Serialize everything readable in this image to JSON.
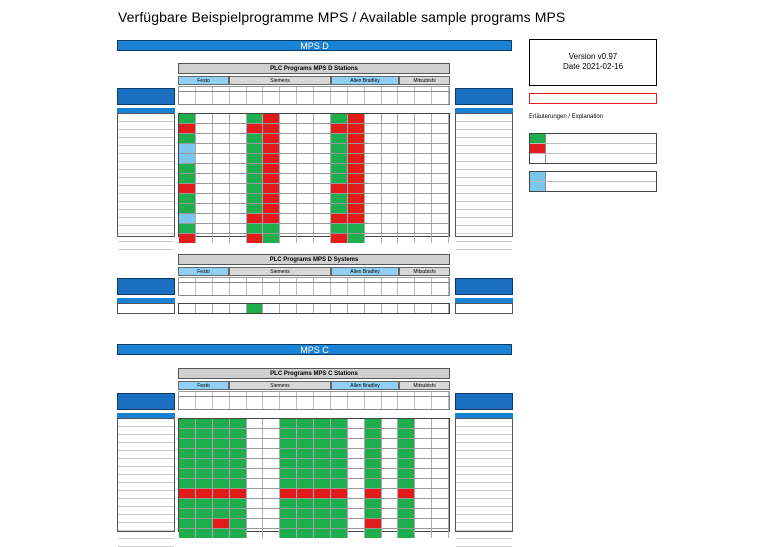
{
  "title": "Verfügbare Beispielprogramme MPS / Available sample programs MPS",
  "version_line1": "Version v0.97",
  "version_line2": "Date 2021-02-16",
  "explanation_label": "Erläuterungen / Explanation",
  "sections": {
    "mps_d": "MPS D",
    "mps_c": "MPS C"
  },
  "tables": {
    "d_stations": "PLC Programs MPS D Stations",
    "d_systems": "PLC Programs MPS D Systems",
    "c_stations": "PLC Programs MPS C Stations"
  },
  "vendors": {
    "festo": "Festo",
    "siemens": "Siemens",
    "allen_bradley": "Allen Bradley",
    "mitsubishi": "Mitsubishi"
  },
  "colors": {
    "blue_bar": "#1a82d4",
    "green": "#1fae4d",
    "red": "#e21b1b",
    "light_blue": "#7cc6ee"
  },
  "grid_d_stations": [
    [
      "g",
      "",
      "",
      "",
      "g",
      "r",
      "",
      "",
      "",
      "g",
      "r",
      "",
      "",
      "",
      "",
      ""
    ],
    [
      "r",
      "",
      "",
      "",
      "r",
      "r",
      "",
      "",
      "",
      "r",
      "r",
      "",
      "",
      "",
      "",
      ""
    ],
    [
      "g",
      "",
      "",
      "",
      "g",
      "r",
      "",
      "",
      "",
      "g",
      "r",
      "",
      "",
      "",
      "",
      ""
    ],
    [
      "b",
      "",
      "",
      "",
      "g",
      "r",
      "",
      "",
      "",
      "g",
      "r",
      "",
      "",
      "",
      "",
      ""
    ],
    [
      "b",
      "",
      "",
      "",
      "g",
      "r",
      "",
      "",
      "",
      "g",
      "r",
      "",
      "",
      "",
      "",
      ""
    ],
    [
      "g",
      "",
      "",
      "",
      "g",
      "r",
      "",
      "",
      "",
      "g",
      "r",
      "",
      "",
      "",
      "",
      ""
    ],
    [
      "g",
      "",
      "",
      "",
      "g",
      "r",
      "",
      "",
      "",
      "g",
      "r",
      "",
      "",
      "",
      "",
      ""
    ],
    [
      "r",
      "",
      "",
      "",
      "g",
      "r",
      "",
      "",
      "",
      "r",
      "r",
      "",
      "",
      "",
      "",
      ""
    ],
    [
      "g",
      "",
      "",
      "",
      "g",
      "r",
      "",
      "",
      "",
      "g",
      "r",
      "",
      "",
      "",
      "",
      ""
    ],
    [
      "g",
      "",
      "",
      "",
      "g",
      "r",
      "",
      "",
      "",
      "g",
      "r",
      "",
      "",
      "",
      "",
      ""
    ],
    [
      "b",
      "",
      "",
      "",
      "r",
      "r",
      "",
      "",
      "",
      "r",
      "r",
      "",
      "",
      "",
      "",
      ""
    ],
    [
      "g",
      "",
      "",
      "",
      "g",
      "g",
      "",
      "",
      "",
      "g",
      "g",
      "",
      "",
      "",
      "",
      ""
    ],
    [
      "r",
      "",
      "",
      "",
      "r",
      "g",
      "",
      "",
      "",
      "r",
      "g",
      "",
      "",
      "",
      "",
      ""
    ]
  ],
  "grid_d_systems": [
    [
      "",
      "",
      "",
      "",
      "g",
      "",
      "",
      "",
      "",
      "",
      "",
      "",
      "",
      "",
      "",
      ""
    ]
  ],
  "grid_c_stations": [
    [
      "g",
      "g",
      "g",
      "g",
      "",
      "",
      "g",
      "g",
      "g",
      "g",
      "",
      "g",
      "",
      "g",
      "",
      ""
    ],
    [
      "g",
      "g",
      "g",
      "g",
      "",
      "",
      "g",
      "g",
      "g",
      "g",
      "",
      "g",
      "",
      "g",
      "",
      ""
    ],
    [
      "g",
      "g",
      "g",
      "g",
      "",
      "",
      "g",
      "g",
      "g",
      "g",
      "",
      "g",
      "",
      "g",
      "",
      ""
    ],
    [
      "g",
      "g",
      "g",
      "g",
      "",
      "",
      "g",
      "g",
      "g",
      "g",
      "",
      "g",
      "",
      "g",
      "",
      ""
    ],
    [
      "g",
      "g",
      "g",
      "g",
      "",
      "",
      "g",
      "g",
      "g",
      "g",
      "",
      "g",
      "",
      "g",
      "",
      ""
    ],
    [
      "g",
      "g",
      "g",
      "g",
      "",
      "",
      "g",
      "g",
      "g",
      "g",
      "",
      "g",
      "",
      "g",
      "",
      ""
    ],
    [
      "g",
      "g",
      "g",
      "g",
      "",
      "",
      "g",
      "g",
      "g",
      "g",
      "",
      "g",
      "",
      "g",
      "",
      ""
    ],
    [
      "r",
      "r",
      "r",
      "r",
      "",
      "",
      "r",
      "r",
      "r",
      "r",
      "",
      "r",
      "",
      "r",
      "",
      ""
    ],
    [
      "g",
      "g",
      "g",
      "g",
      "",
      "",
      "g",
      "g",
      "g",
      "g",
      "",
      "g",
      "",
      "g",
      "",
      ""
    ],
    [
      "g",
      "g",
      "g",
      "g",
      "",
      "",
      "g",
      "g",
      "g",
      "g",
      "",
      "g",
      "",
      "g",
      "",
      ""
    ],
    [
      "g",
      "g",
      "r",
      "g",
      "",
      "",
      "g",
      "g",
      "g",
      "g",
      "",
      "r",
      "",
      "g",
      "",
      ""
    ],
    [
      "g",
      "g",
      "g",
      "g",
      "",
      "",
      "g",
      "g",
      "g",
      "g",
      "",
      "g",
      "",
      "g",
      "",
      ""
    ]
  ]
}
